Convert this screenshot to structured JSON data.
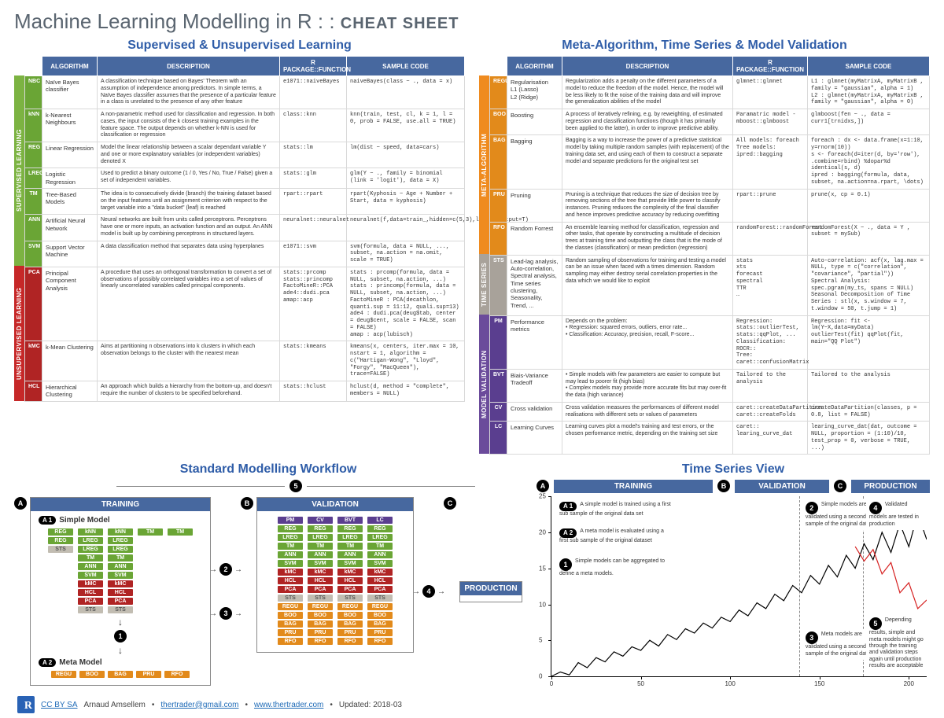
{
  "title_main": "Machine Learning Modelling in R : :",
  "title_sub": "CHEAT SHEET",
  "section_left": "Supervised & Unsupervised Learning",
  "section_right": "Meta-Algorithm, Time Series & Model Validation",
  "section_workflow": "Standard Modelling Workflow",
  "section_timeseries": "Time Series View",
  "cols": {
    "algo": "ALGORITHM",
    "desc": "DESCRIPTION",
    "pkg": "R PACKAGE::FUNCTION",
    "code": "SAMPLE CODE"
  },
  "left_groups": [
    {
      "label": "SUPERVISED LEARNING",
      "color": "green",
      "rows": [
        {
          "tag": "NBC",
          "tagc": "#6aa535",
          "algo": "Naïve Bayes classifier",
          "desc": "A classification technique based on Bayes' Theorem with an assumption of independence among predictors. In simple terms, a Naïve Bayes classifier assumes that the presence of a particular feature in a class is unrelated to the presence of any other feature",
          "pkg": "e1071::naiveBayes",
          "code": "naiveBayes(class ~ ., data = x)"
        },
        {
          "tag": "kNN",
          "tagc": "#6aa535",
          "algo": "k-Nearest Neighbours",
          "desc": "A non-parametric method used for classification and regression. In both cases, the input consists of the k closest training examples in the feature space. The output depends on whether k-NN is used for classification or regression",
          "pkg": "class::knn",
          "code": "knn(train, test, cl, k = 1, l = 0, prob = FALSE, use.all = TRUE)"
        },
        {
          "tag": "REG",
          "tagc": "#6aa535",
          "algo": "Linear Regression",
          "desc": "Model the linear relationship between a scalar dependant variable Y and one or more explanatory variables (or independent variables) denoted X",
          "pkg": "stats::lm",
          "code": "lm(dist ~ speed, data=cars)"
        },
        {
          "tag": "LREG",
          "tagc": "#6aa535",
          "algo": "Logistic Regression",
          "desc": "Used to predict a binary outcome (1 / 0, Yes / No, True / False) given a set of independent variables.",
          "pkg": "stats::glm",
          "code": "glm(Y ~ ., family = binomial (link = 'logit'), data = X)"
        },
        {
          "tag": "TM",
          "tagc": "#6aa535",
          "algo": "Tree-Based Models",
          "desc": "The idea is to consecutively divide (branch) the training dataset based on the input features until an assignment criterion with respect to the target variable into a \"data bucket\" (leaf) is reached",
          "pkg": "rpart::rpart",
          "code": "rpart(Kyphosis ~ Age + Number + Start, data = kyphosis)"
        },
        {
          "tag": "ANN",
          "tagc": "#6aa535",
          "algo": "Artificial Neural Network",
          "desc": "Neural networks are built from units called perceptrons. Perceptrons have one or more inputs, an activation function and an output. An ANN model is built up by combining perceptrons in structured layers.",
          "pkg": "neuralnet::neuralnet",
          "code": "neuralnet(f,data=train_,hidden=c(5,3),linear.output=T)"
        },
        {
          "tag": "SVM",
          "tagc": "#6aa535",
          "algo": "Support Vector Machine",
          "desc": "A data classification method that separates data using hyperplanes",
          "pkg": "e1071::svm",
          "code": "svm(formula, data = NULL, ..., subset, na.action = na.omit, scale = TRUE)"
        }
      ]
    },
    {
      "label": "UNSUPERVISED LEARNING",
      "color": "red",
      "rows": [
        {
          "tag": "PCA",
          "tagc": "#b02424",
          "algo": "Principal Component Analysis",
          "desc": "A procedure that uses an orthogonal transformation to convert a set of observations of possibly correlated variables into a set of values of linearly uncorrelated variables called principal components.",
          "pkg": "stats::prcomp\nstats::princomp\nFactoMineR::PCA\nade4::dudi.pca\namap::acp",
          "code": "stats : prcomp(formula, data = NULL, subset, na.action, ...)\nstats : princomp(formula, data = NULL, subset, na.action, ...)\nFactoMineR : PCA(decathlon, quanti.sup = 11:12, quali.sup=13)\nade4 : dudi.pca(deug$tab, center = deug$cent, scale = FALSE, scan = FALSE)\namap : acp(lubisch)"
        },
        {
          "tag": "kMC",
          "tagc": "#b02424",
          "algo": "k-Mean Clustering",
          "desc": "Aims at partitioning n observations into k clusters in which each observation belongs to the cluster with the nearest mean",
          "pkg": "stats::kmeans",
          "code": "kmeans(x, centers, iter.max = 10, nstart = 1, algorithm = c(\"Hartigan-Wong\", \"Lloyd\", \"Forgy\", \"MacQueen\"), trace=FALSE)"
        },
        {
          "tag": "HCL",
          "tagc": "#b02424",
          "algo": "Hierarchical Clustering",
          "desc": "An approach which builds a hierarchy from the bottom-up, and doesn't require the number of clusters to be specified beforehand.",
          "pkg": "stats::hclust",
          "code": "hclust(d, method = \"complete\", members = NULL)"
        }
      ]
    }
  ],
  "right_groups": [
    {
      "label": "META-ALGORITHM",
      "color": "orange",
      "rows": [
        {
          "tag": "REGU",
          "tagc": "#e28a1b",
          "algo": "Regularisation\nL1 (Lasso)\nL2 (Ridge)",
          "desc": "Regularization adds a penalty on the different parameters of a model to reduce the freedom of the model. Hence, the model will be less likely to fit the noise of the training data and will improve the generalization abilities of the model",
          "pkg": "glmnet::glmnet",
          "code": "L1 : glmnet(myMatrixA, myMatrixB , family = \"gaussian\", alpha = 1)\nL2 : glmnet(myMatrixA, myMatrixB , family = \"gaussian\", alpha = 0)"
        },
        {
          "tag": "BOO",
          "tagc": "#e28a1b",
          "algo": "Boosting",
          "desc": "A process of iteratively refining, e.g. by reweighting, of estimated regression and classification functions (though it has primarily been applied to the latter), in order to improve predictive ability.",
          "pkg": "Paramatric model - mboost::glmboost",
          "code": "glmboost(fen ~ ., data = curr1[trnidxs,])"
        },
        {
          "tag": "BAG",
          "tagc": "#e28a1b",
          "algo": "Bagging",
          "desc": "Bagging is a way to increase the power of a predictive statistical model by taking multiple random samples (with replacement) of the training data set, and using each of them to construct a separate model and separate predictions for the original test set",
          "pkg": "All models: foreach\nTree models: ipred::bagging",
          "code": "foreach : dx <- data.frame(x=1:10, y=rnorm(10))\ns <- foreach(d=iter(d, by='row'), .combine=rbind) %dopar%d\nidentical(s, d)\nipred : bagging(formula, data, subset, na.action=na.rpart, \\dots)"
        },
        {
          "tag": "PRU",
          "tagc": "#e28a1b",
          "algo": "Pruning",
          "desc": "Pruning is a technique that reduces the size of decision tree by removing sections of the tree that provide little power to classify instances. Pruning reduces the complexity of the final classifier and hence improves predictive accuracy by reducing overfitting",
          "pkg": "rpart::prune",
          "code": "prune(x, cp = 0.1)"
        },
        {
          "tag": "RFO",
          "tagc": "#e28a1b",
          "algo": "Random Forrest",
          "desc": "An ensemble learning method for classification, regression and other tasks, that operate by constructing a multitude of decision trees at training time and outputting the class that is the mode of the classes (classification) or mean prediction (regression)",
          "pkg": "randomForest::randomForest",
          "code": "randomForest(X ~ ., data = Y , subset = mySub)"
        }
      ]
    },
    {
      "label": "TIME SERIES",
      "color": "grey",
      "rows": [
        {
          "tag": "STS",
          "tagc": "#a8a29a",
          "algo": "Lead-lag analysis, Auto-correlation, Spectral analysis, Time series clustering, Seasonality, Trend, ...",
          "desc": "Random sampling of observations for training and testing a model can be an issue when faced with a times dimension. Random sampling may either destroy serial correlation properties in the data which we would like to exploit",
          "pkg": "stats\nxts\nforecast\nspectral\nTTR\n…",
          "code": "Auto-correlation: acf(x, lag.max = NULL, type = c(\"correlation\", \"covariance\", \"partial\"))\nSpectral Analysis: spec.pgram(my_ts, spans = NULL)\nSeasonal Decomposition of Time Series : stl(x, s.window = 7, t.window = 50, t.jump = 1)"
        }
      ]
    },
    {
      "label": "MODEL VALIDATION",
      "color": "purple",
      "rows": [
        {
          "tag": "PM",
          "tagc": "#5a3e8f",
          "algo": "Performance metrics",
          "desc": "Depends on the problem:\n• Regression: squared errors, outliers, error rate...\n• Classification: Accuracy, precision, recall, F-score...",
          "pkg": "Regression: stats::outlierTest, stats::qqPlot, ...\nClassification: ROCR::\nTree: caret::confusionMatrix",
          "code": "Regression:  fit <- lm(Y~X,data=myData) outlierTest(fit)  qqPlot(fit, main=\"QQ Plot\")"
        },
        {
          "tag": "BVT",
          "tagc": "#5a3e8f",
          "algo": "Biais-Variance Tradeoff",
          "desc": "• Simple models with few parameters are easier to compute but may lead to poorer fit (high bias)\n• Complex models may provide more accurate fits but may over-fit the data (high variance)",
          "pkg": "Tailored to the analysis",
          "code": "Tailored to the analysis"
        },
        {
          "tag": "CV",
          "tagc": "#5a3e8f",
          "algo": "Cross validation",
          "desc": "Cross validation measures the performances of different model realisations with different sets or values of parameters",
          "pkg": "caret::createDataPartition\ncaret::createFolds",
          "code": "createDataPartition(classes, p = 0.8, list = FALSE)"
        },
        {
          "tag": "LC",
          "tagc": "#5a3e8f",
          "algo": "Learning Curves",
          "desc": "Learning curves plot a model's training and test errors, or the chosen performance metric, depending on the training set size",
          "pkg": "caret:: learing_curve_dat",
          "code": "learing_curve_dat(dat, outcome = NULL, proportion = (1:10)/10, test_prop = 0, verbose = TRUE, ...)"
        }
      ]
    }
  ],
  "workflow": {
    "phaseA": "A",
    "phaseB": "B",
    "phaseC": "C",
    "training": "TRAINING",
    "validation": "VALIDATION",
    "production": "PRODUCTION",
    "simple": "Simple Model",
    "meta": "Meta Model",
    "a1": "A",
    "a1n": "1",
    "a2": "A",
    "a2n": "2",
    "n1": "1",
    "n2": "2",
    "n3": "3",
    "n4": "4",
    "n5": "5",
    "train_cols": [
      [
        "REG",
        "kNN",
        "kNN",
        "TM",
        "TM"
      ],
      [
        "REG",
        "LREG",
        "LREG",
        "",
        ""
      ],
      [
        "STS",
        "LREG",
        "LREG",
        "",
        ""
      ],
      [
        "",
        "TM",
        "TM",
        "",
        ""
      ],
      [
        "",
        "ANN",
        "ANN",
        "",
        ""
      ],
      [
        "",
        "SVM",
        "SVM",
        "",
        ""
      ],
      [
        "",
        "kMC",
        "kMC",
        "",
        ""
      ],
      [
        "",
        "HCL",
        "HCL",
        "",
        ""
      ],
      [
        "",
        "PCA",
        "PCA",
        "",
        ""
      ],
      [
        "",
        "STS",
        "STS",
        "",
        ""
      ]
    ],
    "meta_row": [
      "REGU",
      "BOO",
      "BAG",
      "PRU",
      "RFO"
    ],
    "val_head": [
      "PM",
      "CV",
      "BVT",
      "LC"
    ],
    "val_cols": [
      [
        "REG",
        "REG",
        "REG",
        "REG"
      ],
      [
        "LREG",
        "LREG",
        "LREG",
        "LREG"
      ],
      [
        "TM",
        "TM",
        "TM",
        "TM"
      ],
      [
        "ANN",
        "ANN",
        "ANN",
        "ANN"
      ],
      [
        "SVM",
        "SVM",
        "SVM",
        "SVM"
      ],
      [
        "kMC",
        "kMC",
        "kMC",
        "kMC"
      ],
      [
        "HCL",
        "HCL",
        "HCL",
        "HCL"
      ],
      [
        "PCA",
        "PCA",
        "PCA",
        "PCA"
      ],
      [
        "STS",
        "STS",
        "STS",
        "STS"
      ],
      [
        "REGU",
        "REGU",
        "REGU",
        "REGU"
      ],
      [
        "BOO",
        "BOO",
        "BOO",
        "BOO"
      ],
      [
        "BAG",
        "BAG",
        "BAG",
        "BAG"
      ],
      [
        "PRU",
        "PRU",
        "PRU",
        "PRU"
      ],
      [
        "RFO",
        "RFO",
        "RFO",
        "RFO"
      ]
    ]
  },
  "ts": {
    "yticks": [
      0,
      5,
      10,
      15,
      20,
      25
    ],
    "xticks": [
      0,
      50,
      100,
      150,
      200
    ],
    "training_end_pct": 66,
    "validation_end_pct": 83,
    "line_color": "#000000",
    "line2_color": "#d62222",
    "notes": {
      "a1": "A simple model is trained using a first sub sample of the original data set",
      "a2": "A meta model is evaluated using a first sub sample of the original dataset",
      "n1": "Simple models can be aggregated to define a meta models.",
      "n2": "Simple models are validated using a second sub sample of the original dataset",
      "n3": "Meta models are validated using a second sub sample of the original dataset",
      "n4": "Validated models are tested in production",
      "n5": "Depending results, simple and meta models might go through the training and validation steps again until production results are acceptable"
    },
    "series": [
      [
        0,
        0.0
      ],
      [
        5,
        0.6
      ],
      [
        10,
        0.2
      ],
      [
        15,
        1.9
      ],
      [
        20,
        1.2
      ],
      [
        25,
        2.6
      ],
      [
        30,
        2.0
      ],
      [
        35,
        3.4
      ],
      [
        40,
        2.8
      ],
      [
        45,
        4.1
      ],
      [
        50,
        3.6
      ],
      [
        55,
        5.0
      ],
      [
        60,
        4.2
      ],
      [
        65,
        5.8
      ],
      [
        70,
        5.1
      ],
      [
        75,
        6.6
      ],
      [
        80,
        6.0
      ],
      [
        85,
        7.4
      ],
      [
        90,
        6.7
      ],
      [
        95,
        8.2
      ],
      [
        100,
        7.6
      ],
      [
        105,
        9.2
      ],
      [
        110,
        8.4
      ],
      [
        115,
        10.2
      ],
      [
        120,
        9.4
      ],
      [
        125,
        11.4
      ],
      [
        130,
        10.5
      ],
      [
        135,
        12.6
      ],
      [
        140,
        11.6
      ],
      [
        145,
        14.0
      ],
      [
        150,
        12.8
      ],
      [
        155,
        15.4
      ],
      [
        160,
        13.8
      ],
      [
        165,
        16.8
      ],
      [
        170,
        15.0
      ],
      [
        175,
        18.4
      ],
      [
        180,
        16.2
      ],
      [
        185,
        20.0
      ],
      [
        190,
        17.2
      ],
      [
        195,
        21.2
      ],
      [
        200,
        18.0
      ],
      [
        205,
        22.6
      ],
      [
        210,
        19.0
      ]
    ],
    "series2": [
      [
        170,
        18.0
      ],
      [
        175,
        16.0
      ],
      [
        180,
        17.6
      ],
      [
        185,
        14.2
      ],
      [
        190,
        15.8
      ],
      [
        195,
        11.6
      ],
      [
        200,
        13.0
      ],
      [
        205,
        9.4
      ],
      [
        210,
        10.6
      ]
    ]
  },
  "footer": {
    "cc": "CC BY SA",
    "author": "Arnaud Amsellem",
    "email": "thertrader@gmail.com",
    "site": "www.thertrader.com",
    "updated": "Updated: 2018-03"
  }
}
